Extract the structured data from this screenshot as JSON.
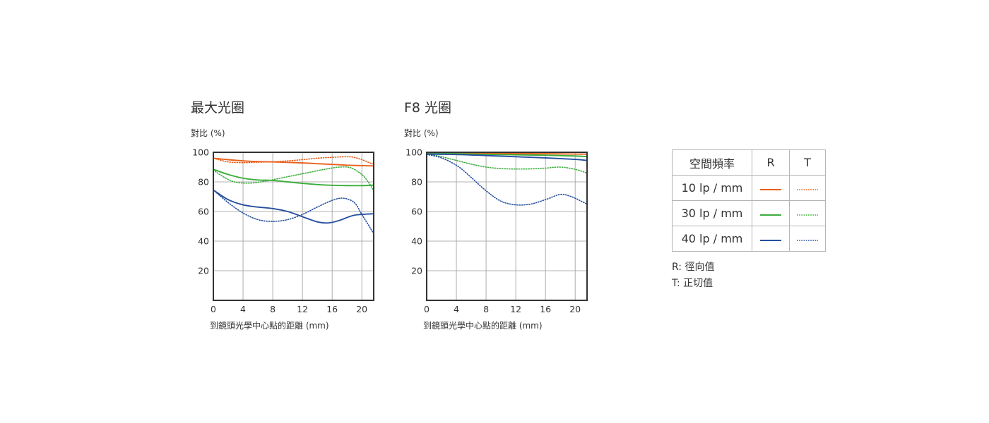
{
  "colors": {
    "10lp": "#e8601c",
    "30lp": "#3cad3c",
    "40lp": "#264f9e",
    "grid": "#9a9a9a",
    "frame": "#333333"
  },
  "legend": {
    "header": [
      "空間頻率",
      "R",
      "T"
    ],
    "rows": [
      {
        "label": "10 lp / mm",
        "color": "#e8601c"
      },
      {
        "label": "30 lp / mm",
        "color": "#3cad3c"
      },
      {
        "label": "40 lp / mm",
        "color": "#264f9e"
      }
    ],
    "notes": [
      "R: 徑向值",
      "T: 正切值"
    ]
  },
  "chart_data": [
    {
      "type": "line",
      "title": "最大光圈",
      "ylabel": "對比 (%)",
      "xlabel": "到鏡頭光學中心點的距離 (mm)",
      "xlim": [
        0,
        21.6
      ],
      "ylim": [
        0,
        100
      ],
      "xticks": [
        0,
        4,
        8,
        12,
        16,
        20
      ],
      "yticks": [
        20,
        40,
        60,
        80,
        100
      ],
      "grid": true,
      "series": [
        {
          "freq": "10 lp / mm",
          "kind": "R",
          "color": "#e8601c",
          "dash": false,
          "x": [
            0,
            2,
            4,
            6,
            8,
            10,
            12,
            14,
            16,
            18,
            20,
            21.6
          ],
          "y": [
            96,
            95,
            94.2,
            93.7,
            93.5,
            93.2,
            92.8,
            92.3,
            91.8,
            91.3,
            91,
            90.8
          ]
        },
        {
          "freq": "10 lp / mm",
          "kind": "T",
          "color": "#e8601c",
          "dash": true,
          "x": [
            0,
            2,
            4,
            6,
            8,
            10,
            12,
            14,
            16,
            18,
            19,
            20,
            21,
            21.6
          ],
          "y": [
            96,
            93.5,
            93,
            93.3,
            93.6,
            94.2,
            95,
            96,
            96.6,
            97,
            96.5,
            95,
            93,
            92
          ]
        },
        {
          "freq": "30 lp / mm",
          "kind": "R",
          "color": "#3cad3c",
          "dash": false,
          "x": [
            0,
            2,
            4,
            6,
            8,
            10,
            12,
            14,
            16,
            18,
            20,
            21.6
          ],
          "y": [
            88.5,
            85,
            82.5,
            81.3,
            81,
            80,
            79,
            78.2,
            77.7,
            77.5,
            77.5,
            77.8
          ]
        },
        {
          "freq": "30 lp / mm",
          "kind": "T",
          "color": "#3cad3c",
          "dash": true,
          "x": [
            0,
            1.5,
            3,
            5,
            7,
            9,
            11,
            13,
            15,
            17,
            18.5,
            20,
            21,
            21.6
          ],
          "y": [
            88,
            83,
            79.8,
            79.2,
            80.5,
            82.5,
            84.5,
            86.5,
            88.5,
            90,
            89.5,
            85,
            79,
            74
          ]
        },
        {
          "freq": "40 lp / mm",
          "kind": "R",
          "color": "#264f9e",
          "dash": false,
          "x": [
            0,
            2,
            4,
            6,
            8,
            10,
            12,
            14,
            15.5,
            17,
            19,
            21.6
          ],
          "y": [
            74.5,
            68,
            64.5,
            63,
            62,
            60,
            56.5,
            53,
            52.3,
            54,
            57.5,
            58.5
          ]
        },
        {
          "freq": "40 lp / mm",
          "kind": "T",
          "color": "#264f9e",
          "dash": true,
          "x": [
            0,
            2,
            4,
            6,
            8,
            10,
            12,
            14,
            16,
            17.5,
            19,
            20,
            21,
            21.6
          ],
          "y": [
            74.5,
            66,
            59,
            54.5,
            53.3,
            54.5,
            58,
            63,
            67.5,
            69,
            66,
            58,
            50,
            45
          ]
        }
      ]
    },
    {
      "type": "line",
      "title": "F8 光圈",
      "ylabel": "對比 (%)",
      "xlabel": "到鏡頭光學中心點的距離 (mm)",
      "xlim": [
        0,
        21.6
      ],
      "ylim": [
        0,
        100
      ],
      "xticks": [
        0,
        4,
        8,
        12,
        16,
        20
      ],
      "yticks": [
        20,
        40,
        60,
        80,
        100
      ],
      "grid": true,
      "series": [
        {
          "freq": "10 lp / mm",
          "kind": "R",
          "color": "#e8601c",
          "dash": false,
          "x": [
            0,
            4,
            8,
            12,
            16,
            20,
            21.6
          ],
          "y": [
            99.5,
            99.3,
            99.2,
            99.1,
            99,
            98.8,
            98.7
          ]
        },
        {
          "freq": "10 lp / mm",
          "kind": "T",
          "color": "#e8601c",
          "dash": true,
          "x": [
            0,
            4,
            8,
            12,
            16,
            20,
            21.6
          ],
          "y": [
            99.3,
            99,
            98.7,
            98.4,
            98,
            97.5,
            97
          ]
        },
        {
          "freq": "30 lp / mm",
          "kind": "R",
          "color": "#3cad3c",
          "dash": false,
          "x": [
            0,
            4,
            8,
            12,
            16,
            20,
            21.6
          ],
          "y": [
            99.3,
            99,
            98.6,
            98.3,
            98,
            97.5,
            97
          ]
        },
        {
          "freq": "30 lp / mm",
          "kind": "T",
          "color": "#3cad3c",
          "dash": true,
          "x": [
            0,
            2,
            4,
            6,
            8,
            10,
            12,
            14,
            16,
            18,
            20,
            21.6
          ],
          "y": [
            99,
            97,
            94.5,
            92,
            90,
            89,
            88.7,
            88.8,
            89.3,
            90,
            88.5,
            86
          ]
        },
        {
          "freq": "40 lp / mm",
          "kind": "R",
          "color": "#264f9e",
          "dash": false,
          "x": [
            0,
            4,
            8,
            12,
            16,
            20,
            21.6
          ],
          "y": [
            98.8,
            98.5,
            97.8,
            97,
            96.2,
            95.2,
            94.5
          ]
        },
        {
          "freq": "40 lp / mm",
          "kind": "T",
          "color": "#264f9e",
          "dash": true,
          "x": [
            0,
            1.5,
            3,
            4.5,
            6,
            8,
            10,
            12,
            14,
            16,
            18,
            19.5,
            21,
            21.6
          ],
          "y": [
            98.5,
            97,
            94,
            89.5,
            83,
            74,
            67,
            64.5,
            65,
            68,
            71.5,
            70,
            66.5,
            65
          ]
        }
      ]
    }
  ]
}
